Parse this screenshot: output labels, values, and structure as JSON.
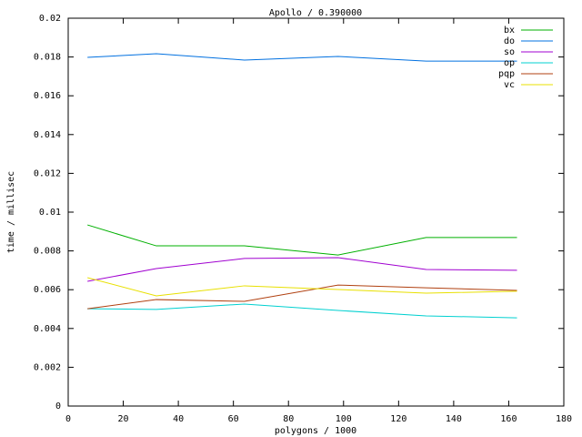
{
  "chart_data": {
    "type": "line",
    "title": "Apollo / 0.390000",
    "x_label": "polygons / 1000",
    "y_label": "time / millisec",
    "x": [
      7,
      32,
      64,
      98,
      130,
      163
    ],
    "series": [
      {
        "name": "bx",
        "color": "#00b000",
        "values": [
          0.00934,
          0.00826,
          0.00826,
          0.00779,
          0.00869,
          0.00869
        ]
      },
      {
        "name": "do",
        "color": "#0070e0",
        "values": [
          0.01798,
          0.01817,
          0.01784,
          0.01803,
          0.01779,
          0.01779
        ]
      },
      {
        "name": "so",
        "color": "#a000d0",
        "values": [
          0.00643,
          0.00709,
          0.00761,
          0.00765,
          0.00704,
          0.007
        ]
      },
      {
        "name": "op",
        "color": "#00d0d0",
        "values": [
          0.00502,
          0.00498,
          0.00526,
          0.00493,
          0.00465,
          0.00455
        ]
      },
      {
        "name": "pqp",
        "color": "#b04010",
        "values": [
          0.00502,
          0.00549,
          0.0054,
          0.00624,
          0.0061,
          0.00596
        ]
      },
      {
        "name": "vc",
        "color": "#e8e000",
        "values": [
          0.00662,
          0.00568,
          0.0062,
          0.00601,
          0.00582,
          0.00592
        ]
      }
    ],
    "xlim": [
      0,
      180
    ],
    "xticks": [
      0,
      20,
      40,
      60,
      80,
      100,
      120,
      140,
      160,
      180
    ],
    "ylim": [
      0,
      0.02
    ],
    "yticks": [
      0,
      0.002,
      0.004,
      0.006,
      0.008,
      0.01,
      0.012,
      0.014,
      0.016,
      0.018,
      0.02
    ],
    "legend": "top-right",
    "grid": false
  }
}
